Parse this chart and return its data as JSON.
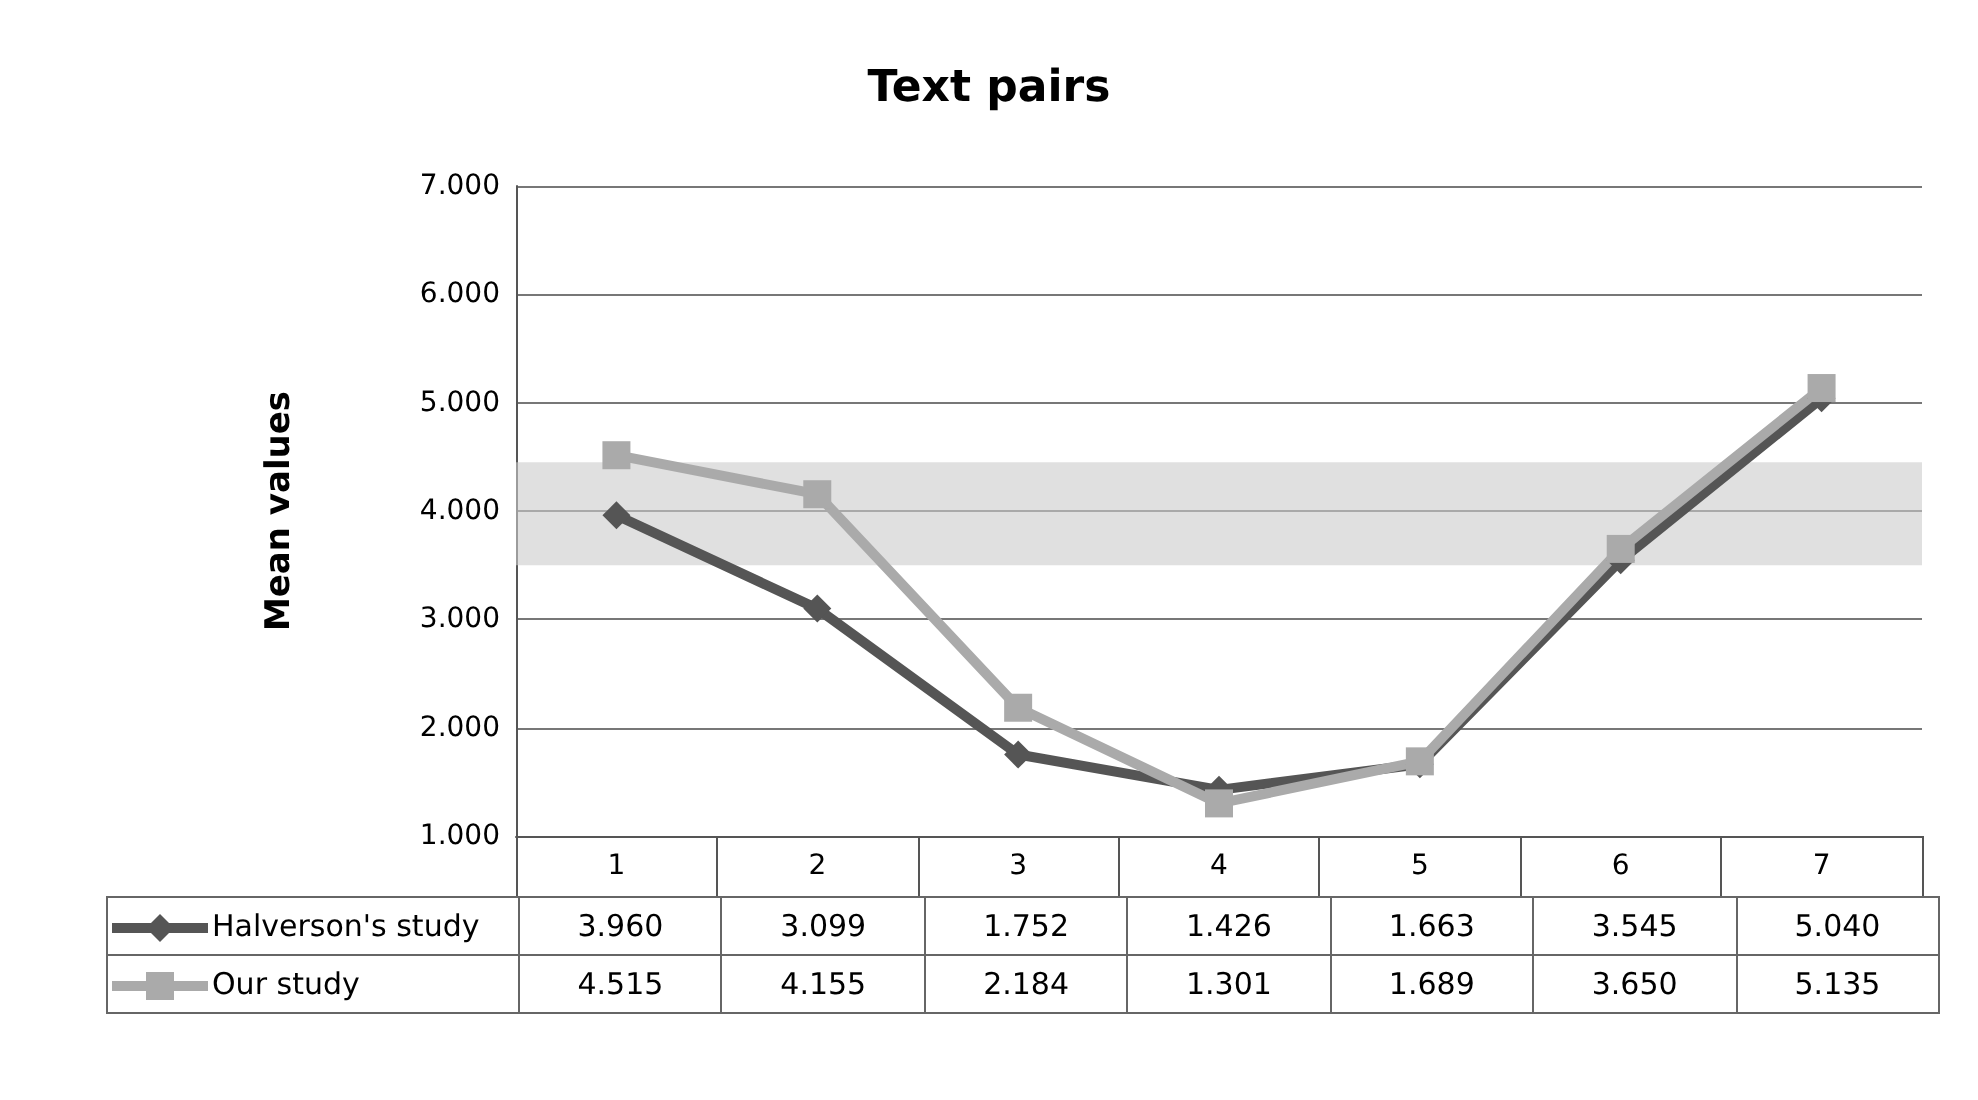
{
  "chart_data": {
    "type": "line",
    "title": "Text pairs",
    "ylabel": "Mean values",
    "categories": [
      "1",
      "2",
      "3",
      "4",
      "5",
      "6",
      "7"
    ],
    "series": [
      {
        "name": "Halverson's study",
        "color": "#555555",
        "marker": "diamond",
        "values": [
          3.96,
          3.099,
          1.752,
          1.426,
          1.663,
          3.545,
          5.04
        ],
        "value_labels": [
          "3.960",
          "3.099",
          "1.752",
          "1.426",
          "1.663",
          "3.545",
          "5.040"
        ]
      },
      {
        "name": "Our study",
        "color": "#aaaaaa",
        "marker": "square",
        "values": [
          4.515,
          4.155,
          2.184,
          1.301,
          1.689,
          3.65,
          5.135
        ],
        "value_labels": [
          "4.515",
          "4.155",
          "2.184",
          "1.301",
          "1.689",
          "3.650",
          "5.135"
        ]
      }
    ],
    "ylim": [
      1,
      7
    ],
    "yticks": [
      {
        "value": 1,
        "label": "1.000"
      },
      {
        "value": 2,
        "label": "2.000"
      },
      {
        "value": 3,
        "label": "3.000"
      },
      {
        "value": 4,
        "label": "4.000"
      },
      {
        "value": 5,
        "label": "5.000"
      },
      {
        "value": 6,
        "label": "6.000"
      },
      {
        "value": 7,
        "label": "7.000"
      }
    ],
    "bands": [
      {
        "axis": "y",
        "from": 3.5,
        "to": 4.45,
        "color": "#cccccc"
      }
    ],
    "grid": "y",
    "legend": "bottom"
  }
}
